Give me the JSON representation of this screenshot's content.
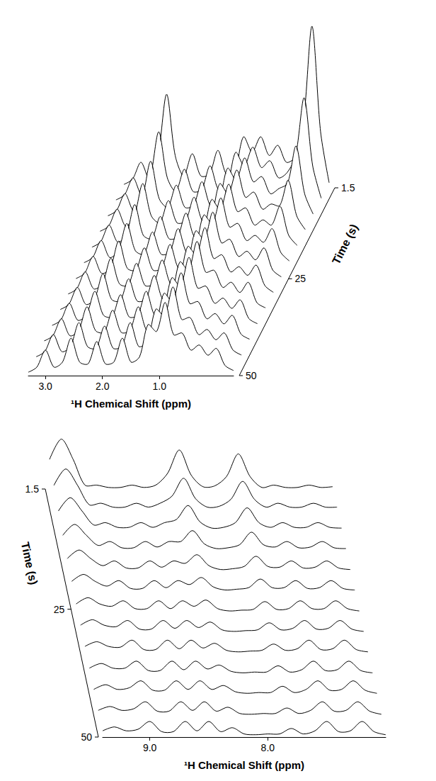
{
  "chart_data": [
    {
      "type": "waterfall",
      "x_label": "¹H Chemical Shift (ppm)",
      "z_label": "Time (s)",
      "color": "#000000",
      "xlim": [
        3.3,
        -0.3
      ],
      "xticks": [
        {
          "value": 3,
          "label": "3.0"
        },
        {
          "value": 2,
          "label": "2.0"
        },
        {
          "value": 1,
          "label": "1.0"
        }
      ],
      "ylim": [
        0,
        10
      ],
      "zlim": [
        1.5,
        50
      ],
      "zticks": [
        1.5,
        25,
        50
      ],
      "x": [
        3.3,
        3.15,
        3.0,
        2.85,
        2.7,
        2.55,
        2.4,
        2.25,
        2.1,
        1.95,
        1.8,
        1.65,
        1.5,
        1.35,
        1.2,
        1.05,
        0.9,
        0.75,
        0.6,
        0.45,
        0.3,
        0.15,
        0.0,
        -0.15,
        -0.3
      ],
      "traces": [
        {
          "time": 1.5,
          "values": [
            0.2,
            0.5,
            1.5,
            0.5,
            1.9,
            5.5,
            1.9,
            0.7,
            2.0,
            0.7,
            0.8,
            2.2,
            0.8,
            1.1,
            3.0,
            2.1,
            3.0,
            1.9,
            2.5,
            1.5,
            1.8,
            3.9,
            9.5,
            3.3,
            0.3
          ]
        },
        {
          "time": 5.5,
          "values": [
            0.2,
            0.5,
            1.5,
            0.5,
            1.5,
            4.2,
            1.5,
            0.7,
            2.0,
            0.7,
            0.8,
            2.2,
            0.8,
            1.1,
            3.0,
            2.2,
            3.3,
            2.1,
            2.5,
            1.5,
            1.8,
            2.8,
            6.2,
            2.2,
            0.3
          ]
        },
        {
          "time": 9.6,
          "values": [
            0.2,
            0.5,
            1.5,
            0.5,
            1.2,
            3.4,
            1.2,
            0.7,
            2.0,
            0.7,
            0.8,
            2.2,
            0.8,
            1.1,
            3.0,
            2.3,
            3.6,
            2.2,
            2.5,
            1.5,
            1.8,
            2.1,
            4.3,
            1.5,
            0.3
          ]
        },
        {
          "time": 13.6,
          "values": [
            0.2,
            0.5,
            1.5,
            0.5,
            1.1,
            3.0,
            1.1,
            0.7,
            2.0,
            0.7,
            0.8,
            2.2,
            0.8,
            1.1,
            3.0,
            2.4,
            3.8,
            2.2,
            2.5,
            1.5,
            1.8,
            1.7,
            3.2,
            1.1,
            0.3
          ]
        },
        {
          "time": 17.7,
          "values": [
            0.2,
            0.5,
            1.5,
            0.5,
            0.9,
            2.7,
            0.9,
            0.7,
            2.0,
            0.7,
            0.8,
            2.2,
            0.8,
            1.1,
            3.0,
            2.4,
            3.9,
            2.3,
            2.5,
            1.5,
            1.8,
            1.5,
            2.6,
            0.9,
            0.3
          ]
        },
        {
          "time": 21.7,
          "values": [
            0.2,
            0.5,
            1.5,
            0.5,
            0.9,
            2.5,
            0.9,
            0.7,
            2.0,
            0.7,
            0.8,
            2.2,
            0.8,
            1.1,
            3.0,
            2.5,
            4.0,
            2.3,
            2.5,
            1.5,
            1.8,
            1.4,
            2.2,
            0.8,
            0.3
          ]
        },
        {
          "time": 25.8,
          "values": [
            0.2,
            0.5,
            1.5,
            0.5,
            0.8,
            2.4,
            0.8,
            0.7,
            2.0,
            0.7,
            0.8,
            2.2,
            0.8,
            1.1,
            3.0,
            2.5,
            4.1,
            2.3,
            2.5,
            1.5,
            1.8,
            1.3,
            2.0,
            0.7,
            0.3
          ]
        },
        {
          "time": 29.8,
          "values": [
            0.2,
            0.5,
            1.5,
            0.5,
            0.8,
            2.3,
            0.8,
            0.7,
            2.0,
            0.7,
            0.8,
            2.2,
            0.8,
            1.1,
            3.0,
            2.5,
            4.1,
            2.3,
            2.5,
            1.5,
            1.8,
            1.3,
            1.9,
            0.7,
            0.3
          ]
        },
        {
          "time": 33.8,
          "values": [
            0.2,
            0.5,
            1.5,
            0.5,
            0.8,
            2.3,
            0.8,
            0.7,
            2.0,
            0.7,
            0.8,
            2.2,
            0.8,
            1.1,
            3.0,
            2.5,
            4.2,
            2.4,
            2.5,
            1.5,
            1.8,
            1.2,
            1.8,
            0.6,
            0.3
          ]
        },
        {
          "time": 37.9,
          "values": [
            0.2,
            0.5,
            1.5,
            0.5,
            0.8,
            2.2,
            0.8,
            0.7,
            2.0,
            0.7,
            0.8,
            2.2,
            0.8,
            1.1,
            3.0,
            2.5,
            4.2,
            2.4,
            2.5,
            1.5,
            1.8,
            1.2,
            1.7,
            0.6,
            0.3
          ]
        },
        {
          "time": 41.9,
          "values": [
            0.2,
            0.5,
            1.5,
            0.5,
            0.8,
            2.2,
            0.8,
            0.7,
            2.0,
            0.7,
            0.8,
            2.2,
            0.8,
            1.1,
            3.0,
            2.5,
            4.2,
            2.4,
            2.5,
            1.5,
            1.8,
            1.2,
            1.7,
            0.6,
            0.3
          ]
        },
        {
          "time": 46.0,
          "values": [
            0.2,
            0.5,
            1.5,
            0.5,
            0.8,
            2.2,
            0.8,
            0.7,
            2.0,
            0.7,
            0.8,
            2.2,
            0.8,
            1.1,
            3.0,
            2.6,
            4.3,
            2.4,
            2.5,
            1.5,
            1.8,
            1.2,
            1.6,
            0.6,
            0.3
          ]
        },
        {
          "time": 50.0,
          "values": [
            0.2,
            0.5,
            1.5,
            0.5,
            0.8,
            2.2,
            0.8,
            0.7,
            2.0,
            0.7,
            0.8,
            2.2,
            0.8,
            1.1,
            3.0,
            2.6,
            4.3,
            2.4,
            2.5,
            1.5,
            1.8,
            1.2,
            1.6,
            0.6,
            0.3
          ]
        }
      ]
    },
    {
      "type": "waterfall",
      "x_label": "¹H Chemical Shift (ppm)",
      "z_label": "Time (s)",
      "color": "#000000",
      "xlim": [
        9.4,
        7.0
      ],
      "xticks": [
        {
          "value": 9,
          "label": "9.0"
        },
        {
          "value": 8,
          "label": "8.0"
        }
      ],
      "ylim": [
        0,
        10
      ],
      "zlim": [
        1.5,
        50
      ],
      "zticks": [
        1.5,
        25,
        50
      ],
      "x": [
        9.4,
        9.3,
        9.2,
        9.1,
        9.0,
        8.9,
        8.8,
        8.7,
        8.6,
        8.5,
        8.4,
        8.3,
        8.2,
        8.1,
        8.0,
        7.9,
        7.8,
        7.7,
        7.6,
        7.5,
        7.4,
        7.3,
        7.2,
        7.1,
        7.0
      ],
      "traces": [
        {
          "time": 1.5,
          "values": [
            3.8,
            6.4,
            3.8,
            0.5,
            0.5,
            0.2,
            0.2,
            0.5,
            0.2,
            0.5,
            2.0,
            5.0,
            1.8,
            0.3,
            0.4,
            1.6,
            4.5,
            1.6,
            0.2,
            0.5,
            0.2,
            0.2,
            0.5,
            0.2,
            0.3
          ]
        },
        {
          "time": 5.5,
          "values": [
            3.1,
            5.2,
            3.1,
            0.6,
            0.8,
            0.3,
            0.3,
            0.8,
            0.3,
            0.8,
            1.7,
            4.0,
            1.4,
            0.3,
            0.4,
            1.3,
            3.6,
            1.3,
            0.3,
            0.8,
            0.3,
            0.3,
            0.8,
            0.3,
            0.3
          ]
        },
        {
          "time": 9.6,
          "values": [
            2.5,
            4.2,
            2.5,
            0.7,
            1.0,
            0.4,
            0.4,
            1.0,
            0.4,
            1.0,
            1.4,
            3.2,
            1.1,
            0.3,
            0.4,
            1.0,
            2.9,
            1.0,
            0.4,
            1.0,
            0.4,
            0.4,
            1.0,
            0.4,
            0.3
          ]
        },
        {
          "time": 13.6,
          "values": [
            2.0,
            3.4,
            2.0,
            0.7,
            1.2,
            0.4,
            0.4,
            1.2,
            0.5,
            1.2,
            1.2,
            2.6,
            0.9,
            0.3,
            0.4,
            0.8,
            2.4,
            0.8,
            0.5,
            1.2,
            0.4,
            0.5,
            1.2,
            0.4,
            0.3
          ]
        },
        {
          "time": 17.7,
          "values": [
            1.7,
            2.8,
            1.7,
            0.8,
            1.4,
            0.5,
            0.5,
            1.4,
            0.6,
            1.4,
            1.1,
            2.2,
            0.8,
            0.3,
            0.4,
            0.7,
            2.0,
            0.7,
            0.6,
            1.4,
            0.5,
            0.6,
            1.4,
            0.5,
            0.3
          ]
        },
        {
          "time": 21.7,
          "values": [
            1.4,
            2.3,
            1.4,
            0.8,
            1.5,
            0.5,
            0.5,
            1.5,
            0.6,
            1.5,
            1.0,
            1.9,
            0.7,
            0.3,
            0.4,
            0.6,
            1.7,
            0.6,
            0.6,
            1.5,
            0.5,
            0.6,
            1.5,
            0.5,
            0.3
          ]
        },
        {
          "time": 25.8,
          "values": [
            1.2,
            2.0,
            1.2,
            0.9,
            1.6,
            0.6,
            0.6,
            1.6,
            0.6,
            1.6,
            0.9,
            1.7,
            0.6,
            0.3,
            0.4,
            0.5,
            1.5,
            0.5,
            0.6,
            1.6,
            0.6,
            0.6,
            1.6,
            0.6,
            0.3
          ]
        },
        {
          "time": 29.8,
          "values": [
            1.1,
            1.8,
            1.1,
            0.9,
            1.7,
            0.6,
            0.6,
            1.7,
            0.7,
            1.7,
            0.8,
            1.5,
            0.5,
            0.3,
            0.4,
            0.5,
            1.4,
            0.5,
            0.7,
            1.7,
            0.6,
            0.7,
            1.7,
            0.6,
            0.3
          ]
        },
        {
          "time": 33.8,
          "values": [
            1.0,
            1.6,
            1.0,
            0.9,
            1.8,
            0.6,
            0.6,
            1.8,
            0.7,
            1.8,
            0.8,
            1.4,
            0.5,
            0.3,
            0.4,
            0.5,
            1.3,
            0.5,
            0.7,
            1.8,
            0.6,
            0.7,
            1.8,
            0.6,
            0.3
          ]
        },
        {
          "time": 37.9,
          "values": [
            0.9,
            1.5,
            0.9,
            0.9,
            1.8,
            0.6,
            0.6,
            1.8,
            0.7,
            1.8,
            0.8,
            1.3,
            0.5,
            0.3,
            0.4,
            0.4,
            1.2,
            0.4,
            0.7,
            1.8,
            0.6,
            0.7,
            1.8,
            0.6,
            0.3
          ]
        },
        {
          "time": 41.9,
          "values": [
            0.8,
            1.4,
            0.8,
            1.0,
            1.9,
            0.7,
            0.7,
            1.9,
            0.8,
            1.9,
            0.8,
            1.3,
            0.5,
            0.3,
            0.4,
            0.4,
            1.2,
            0.4,
            0.8,
            1.9,
            0.7,
            0.8,
            1.9,
            0.7,
            0.3
          ]
        },
        {
          "time": 46.0,
          "values": [
            0.8,
            1.3,
            0.8,
            1.0,
            1.9,
            0.7,
            0.7,
            1.9,
            0.8,
            1.9,
            0.7,
            1.2,
            0.4,
            0.3,
            0.4,
            0.4,
            1.1,
            0.4,
            0.8,
            1.9,
            0.7,
            0.8,
            1.9,
            0.7,
            0.3
          ]
        },
        {
          "time": 50.0,
          "values": [
            0.8,
            1.3,
            0.8,
            1.0,
            2.0,
            0.7,
            0.7,
            2.0,
            0.8,
            2.0,
            0.7,
            1.2,
            0.4,
            0.3,
            0.4,
            0.4,
            1.1,
            0.4,
            0.8,
            2.0,
            0.7,
            0.8,
            2.0,
            0.7,
            0.3
          ]
        }
      ]
    }
  ]
}
